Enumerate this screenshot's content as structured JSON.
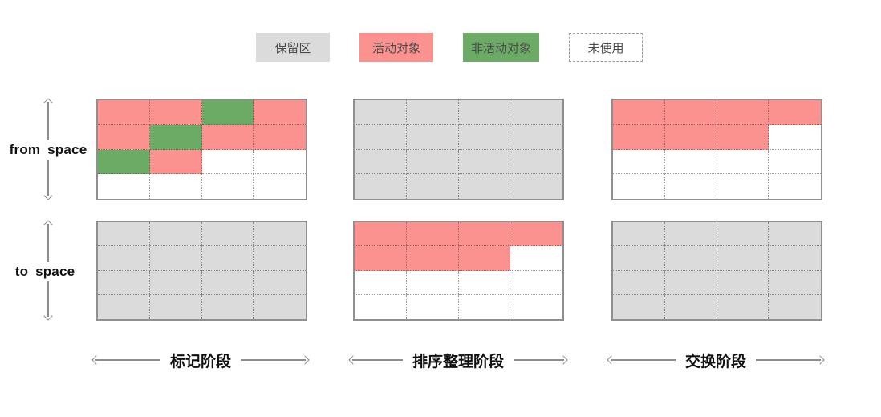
{
  "colors": {
    "background": "#ffffff",
    "reserved": "#dbdbdb",
    "active": "#fb928f",
    "inactive": "#6bab66",
    "unused": "#ffffff",
    "grid_border": "#8f8f8f",
    "cell_divider": "rgba(70,70,70,0.55)",
    "arrow": "#8e8e8e",
    "heading_text": "#111111",
    "legend_text": "#4a4a4a"
  },
  "cell_types": {
    "R": "reserved",
    "A": "active",
    "I": "inactive",
    "U": "unused"
  },
  "legend": {
    "items": [
      {
        "label": "保留区",
        "type": "reserved"
      },
      {
        "label": "活动对象",
        "type": "active"
      },
      {
        "label": "非活动对象",
        "type": "inactive"
      },
      {
        "label": "未使用",
        "type": "unused"
      }
    ]
  },
  "spaces": {
    "from_label": "from space",
    "to_label": "to space"
  },
  "phases": [
    {
      "key": "marking",
      "label": "标记阶段",
      "from_grid": [
        [
          "A",
          "A",
          "I",
          "A"
        ],
        [
          "A",
          "I",
          "A",
          "A"
        ],
        [
          "I",
          "A",
          "U",
          "U"
        ],
        [
          "U",
          "U",
          "U",
          "U"
        ]
      ],
      "to_grid": [
        [
          "R",
          "R",
          "R",
          "R"
        ],
        [
          "R",
          "R",
          "R",
          "R"
        ],
        [
          "R",
          "R",
          "R",
          "R"
        ],
        [
          "R",
          "R",
          "R",
          "R"
        ]
      ]
    },
    {
      "key": "sorting",
      "label": "排序整理阶段",
      "from_grid": [
        [
          "R",
          "R",
          "R",
          "R"
        ],
        [
          "R",
          "R",
          "R",
          "R"
        ],
        [
          "R",
          "R",
          "R",
          "R"
        ],
        [
          "R",
          "R",
          "R",
          "R"
        ]
      ],
      "to_grid": [
        [
          "A",
          "A",
          "A",
          "A"
        ],
        [
          "A",
          "A",
          "A",
          "U"
        ],
        [
          "U",
          "U",
          "U",
          "U"
        ],
        [
          "U",
          "U",
          "U",
          "U"
        ]
      ]
    },
    {
      "key": "swap",
      "label": "交换阶段",
      "from_grid": [
        [
          "A",
          "A",
          "A",
          "A"
        ],
        [
          "A",
          "A",
          "A",
          "U"
        ],
        [
          "U",
          "U",
          "U",
          "U"
        ],
        [
          "U",
          "U",
          "U",
          "U"
        ]
      ],
      "to_grid": [
        [
          "R",
          "R",
          "R",
          "R"
        ],
        [
          "R",
          "R",
          "R",
          "R"
        ],
        [
          "R",
          "R",
          "R",
          "R"
        ],
        [
          "R",
          "R",
          "R",
          "R"
        ]
      ]
    }
  ]
}
